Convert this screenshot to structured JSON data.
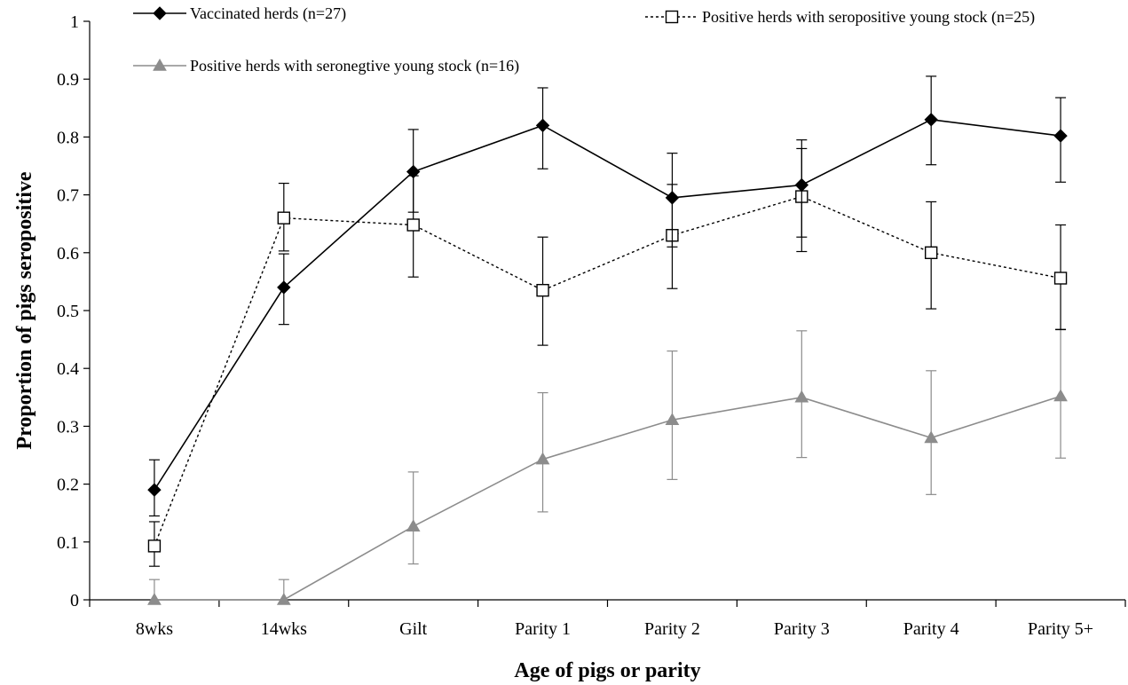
{
  "chart_data": {
    "type": "line",
    "xlabel": "Age of pigs or parity",
    "ylabel": "Proportion of pigs seropositive",
    "ylim": [
      0,
      1
    ],
    "yticks": [
      "0",
      "0.1",
      "0.2",
      "0.3",
      "0.4",
      "0.5",
      "0.6",
      "0.7",
      "0.8",
      "0.9",
      "1"
    ],
    "categories": [
      "8wks",
      "14wks",
      "Gilt",
      "Parity 1",
      "Parity 2",
      "Parity 3",
      "Parity 4",
      "Parity 5+"
    ],
    "grid": false,
    "legend_position": "top",
    "series": [
      {
        "name": "Vaccinated herds (n=27)",
        "color": "#000000",
        "line_style": "solid",
        "marker": "diamond-filled",
        "values": [
          0.19,
          0.54,
          0.74,
          0.82,
          0.695,
          0.717,
          0.83,
          0.802
        ],
        "error_low": [
          0.145,
          0.476,
          0.67,
          0.745,
          0.61,
          0.627,
          0.752,
          0.722
        ],
        "error_high": [
          0.242,
          0.598,
          0.813,
          0.885,
          0.772,
          0.795,
          0.905,
          0.868
        ]
      },
      {
        "name": "Positive herds with seropositive young stock (n=25)",
        "color": "#000000",
        "line_style": "dotted",
        "marker": "square-open",
        "values": [
          0.093,
          0.66,
          0.648,
          0.535,
          0.63,
          0.697,
          0.6,
          0.556
        ],
        "error_low": [
          0.058,
          0.603,
          0.558,
          0.44,
          0.538,
          0.602,
          0.503,
          0.467
        ],
        "error_high": [
          0.135,
          0.72,
          0.733,
          0.627,
          0.718,
          0.78,
          0.688,
          0.648
        ]
      },
      {
        "name": "Positive herds with seronegtive young stock (n=16)",
        "color": "#8c8c8c",
        "line_style": "solid",
        "marker": "triangle-filled",
        "values": [
          0,
          0,
          0.127,
          0.243,
          0.311,
          0.35,
          0.28,
          0.352
        ],
        "error_low": [
          0,
          0,
          0.062,
          0.152,
          0.208,
          0.246,
          0.182,
          0.245
        ],
        "error_high": [
          0.035,
          0.035,
          0.221,
          0.358,
          0.43,
          0.465,
          0.396,
          0.468
        ]
      }
    ]
  }
}
